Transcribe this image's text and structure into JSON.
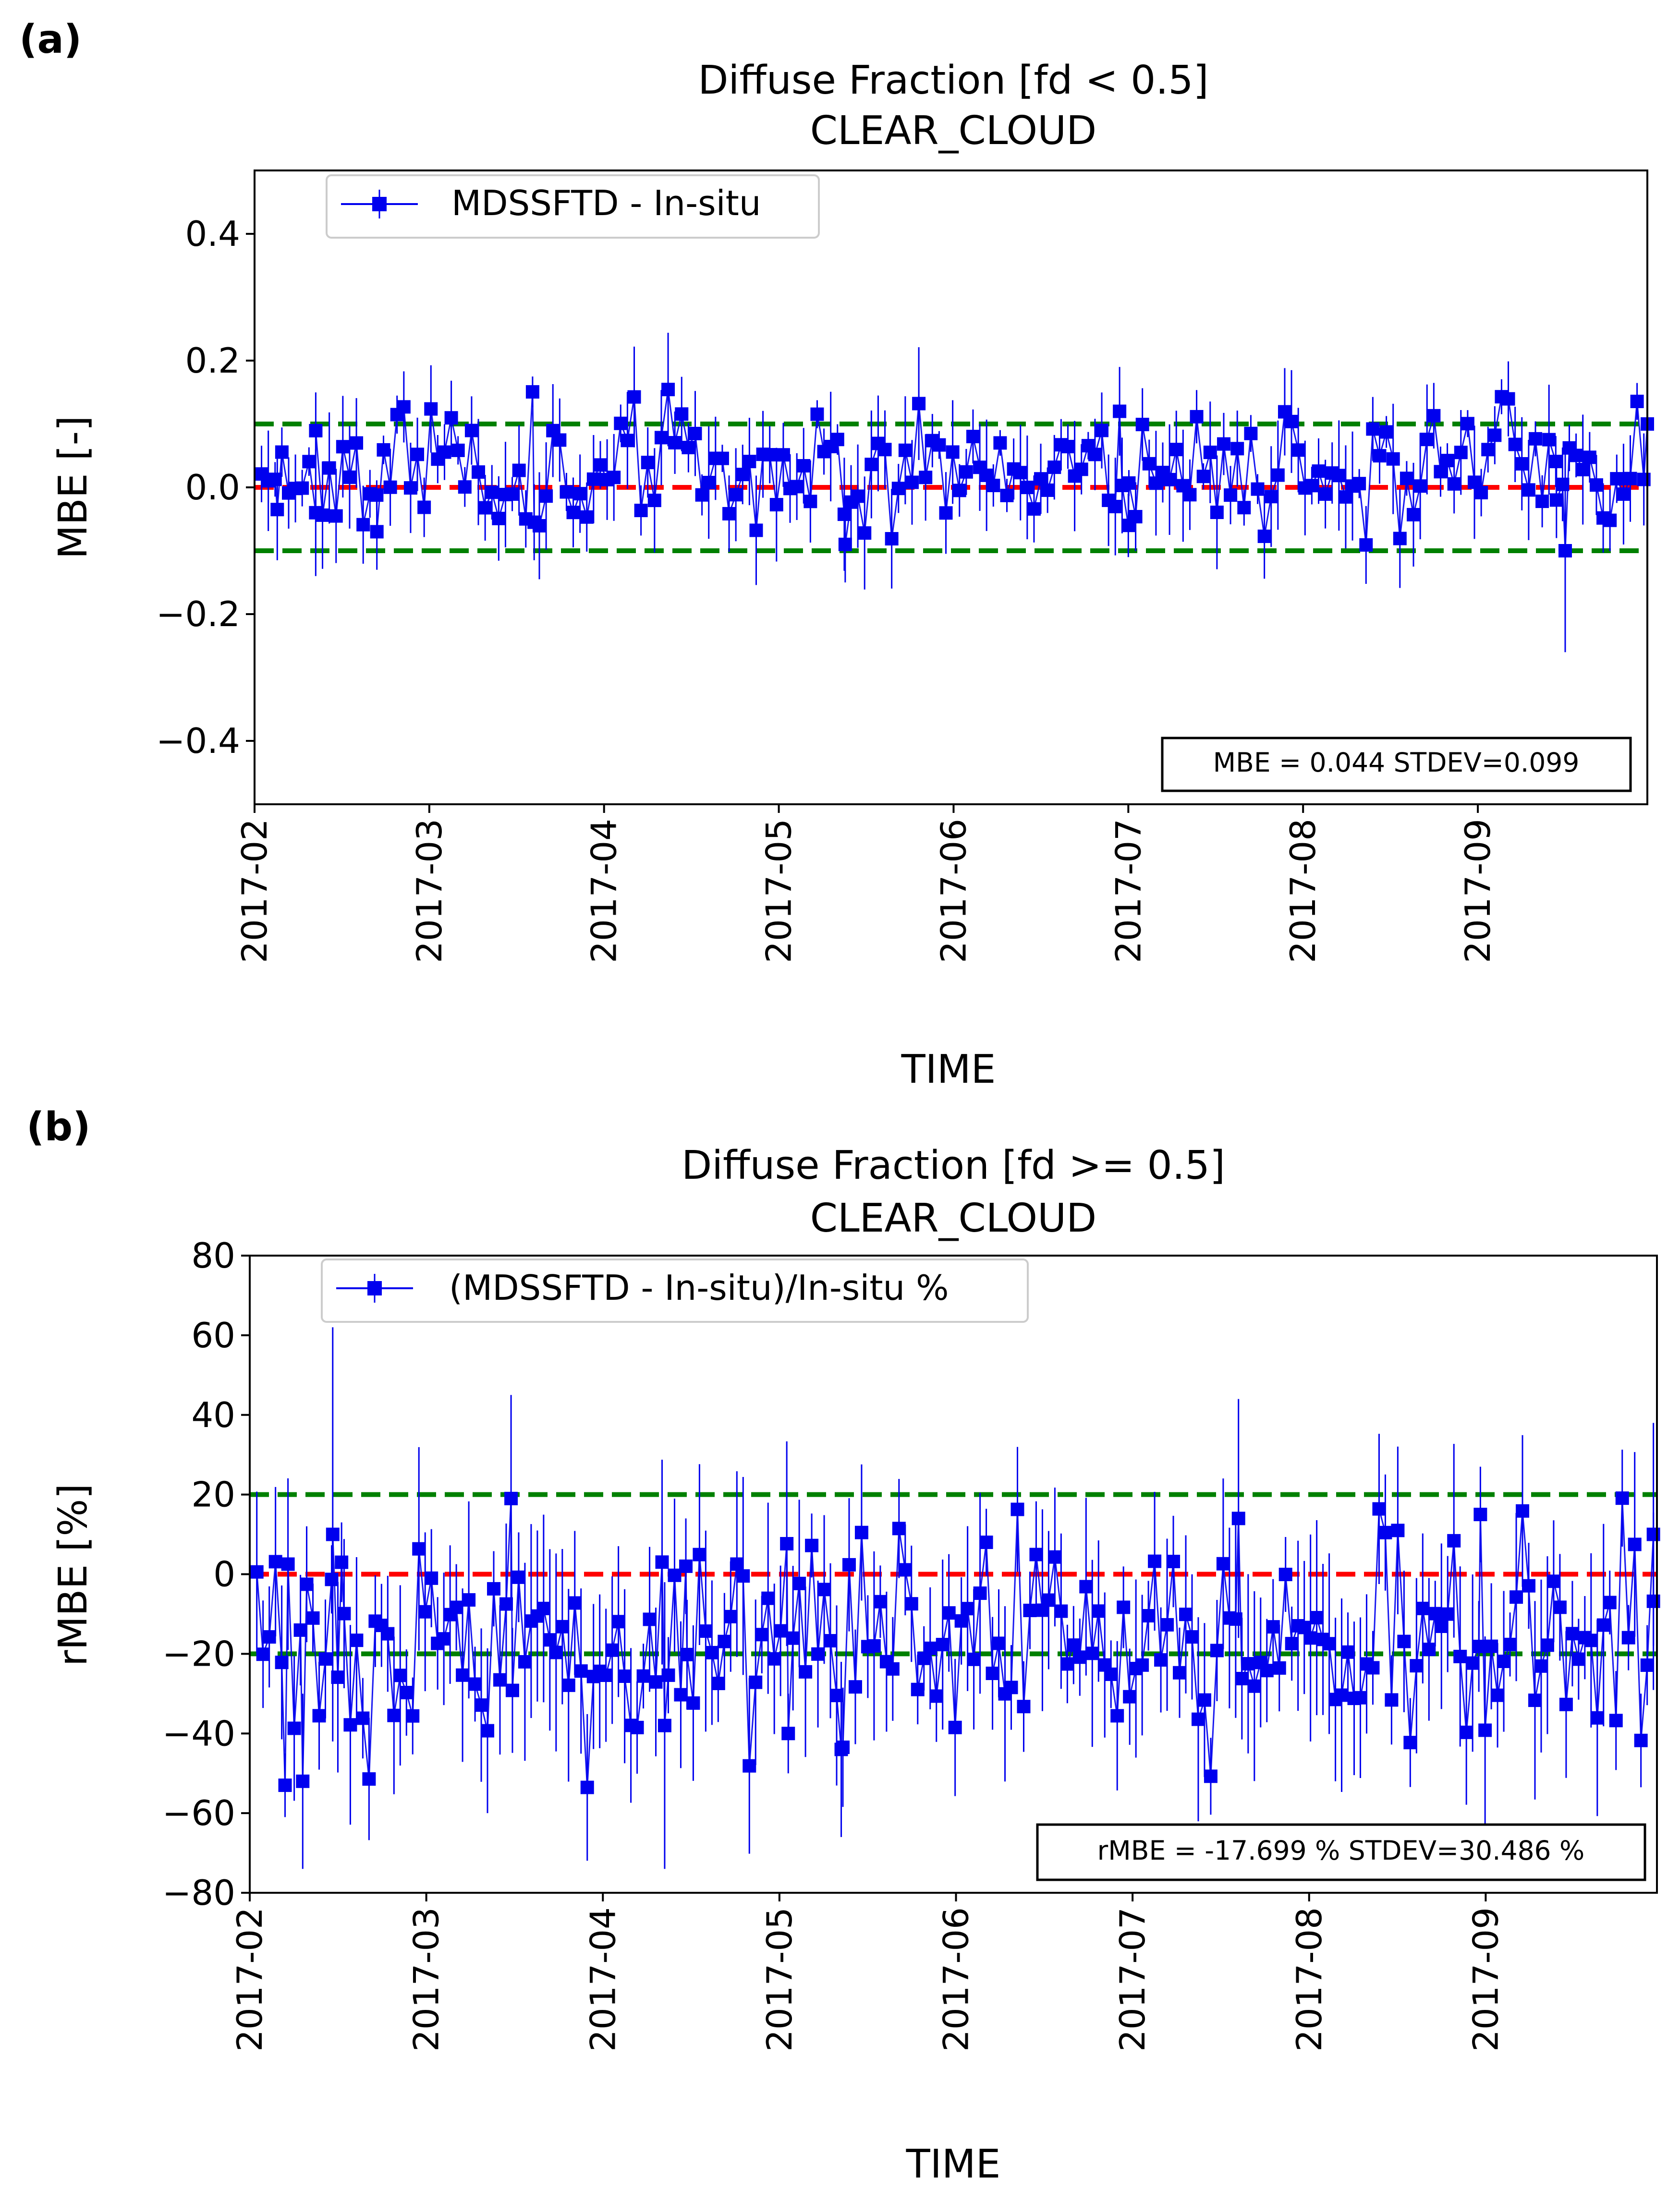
{
  "colors": {
    "series": "#0000ee",
    "zero_line": "#ff0000",
    "threshold": "#008000",
    "axes": "#000000"
  },
  "chart_data": [
    {
      "panel_label": "(a)",
      "type": "scatter",
      "title": "Diffuse Fraction [fd < 0.5",
      "subtitle": "CLEAR_CLOUD",
      "xlabel": "TIME",
      "ylabel": "MBE [-]",
      "xlim_month": [
        2.0,
        9.97
      ],
      "ylim": [
        -0.5,
        0.5
      ],
      "yticks": [
        0.4,
        0.2,
        0.0,
        -0.2,
        -0.4
      ],
      "ytick_labels": [
        "0.4",
        "0.2",
        "0.0",
        "−0.2",
        "−0.4"
      ],
      "xticks": [
        "2017-02",
        "2017-03",
        "2017-04",
        "2017-05",
        "2017-06",
        "2017-07",
        "2017-08",
        "2017-09"
      ],
      "hlines": [
        {
          "y": 0.0,
          "color": "#ff0000"
        },
        {
          "y": 0.1,
          "color": "#008000"
        },
        {
          "y": -0.1,
          "color": "#008000"
        }
      ],
      "legend": "MDSSFTD - In-situ",
      "stats": "MBE = 0.044  STDEV=0.099",
      "seed": 11,
      "n_points": 205,
      "series_mean": 0.035,
      "series_spread": 0.05,
      "err_min": 0.02,
      "err_max": 0.09,
      "outliers": [
        {
          "x": 2.13,
          "y": -0.035,
          "err": 0.08
        },
        {
          "x": 2.35,
          "y": -0.04,
          "err": 0.1
        },
        {
          "x": 2.7,
          "y": -0.07,
          "err": 0.06
        },
        {
          "x": 3.6,
          "y": -0.055,
          "err": 0.06
        },
        {
          "x": 5.38,
          "y": -0.09,
          "err": 0.06
        },
        {
          "x": 6.95,
          "y": 0.12,
          "err": 0.07
        },
        {
          "x": 7.0,
          "y": -0.06,
          "err": 0.05
        },
        {
          "x": 9.45,
          "y": -0.02,
          "err": 0.06
        },
        {
          "x": 9.5,
          "y": -0.1,
          "err": 0.16
        },
        {
          "x": 9.97,
          "y": 0.1,
          "err": 0.09
        }
      ]
    },
    {
      "panel_label": "(b)",
      "type": "scatter",
      "title": "Diffuse Fraction [fd >= 0.5",
      "subtitle": "CLEAR_CLOUD",
      "xlabel": "TIME",
      "ylabel": "rMBE [%]",
      "xlim_month": [
        2.0,
        9.97
      ],
      "ylim": [
        -80,
        80
      ],
      "yticks": [
        80,
        60,
        40,
        20,
        0,
        -20,
        -40,
        -60,
        -80
      ],
      "ytick_labels": [
        "80",
        "60",
        "40",
        "20",
        "0",
        "−20",
        "−40",
        "−60",
        "−80"
      ],
      "xticks": [
        "2017-02",
        "2017-03",
        "2017-04",
        "2017-05",
        "2017-06",
        "2017-07",
        "2017-08",
        "2017-09"
      ],
      "hlines": [
        {
          "y": 0,
          "color": "#ff0000"
        },
        {
          "y": 20,
          "color": "#008000"
        },
        {
          "y": -20,
          "color": "#008000"
        }
      ],
      "legend": "(MDSSFTD - In-situ)/In-situ %",
      "stats": "rMBE = -17.699 % STDEV=30.486 %",
      "seed": 29,
      "n_points": 225,
      "series_mean": -17.7,
      "series_spread": 13.0,
      "err_min": 8,
      "err_max": 26,
      "outliers": [
        {
          "x": 2.2,
          "y": -53,
          "err": 8
        },
        {
          "x": 2.3,
          "y": -52,
          "err": 22
        },
        {
          "x": 2.47,
          "y": 10,
          "err": 52
        },
        {
          "x": 2.52,
          "y": 3,
          "err": 10
        },
        {
          "x": 3.48,
          "y": 19,
          "err": 26
        },
        {
          "x": 4.35,
          "y": -38,
          "err": 36
        },
        {
          "x": 4.47,
          "y": 2,
          "err": 12
        },
        {
          "x": 5.05,
          "y": -40,
          "err": 10
        },
        {
          "x": 5.35,
          "y": -44,
          "err": 22
        },
        {
          "x": 7.6,
          "y": 14,
          "err": 30
        },
        {
          "x": 8.97,
          "y": 15,
          "err": 12
        },
        {
          "x": 9.95,
          "y": 10,
          "err": 28
        }
      ]
    }
  ]
}
